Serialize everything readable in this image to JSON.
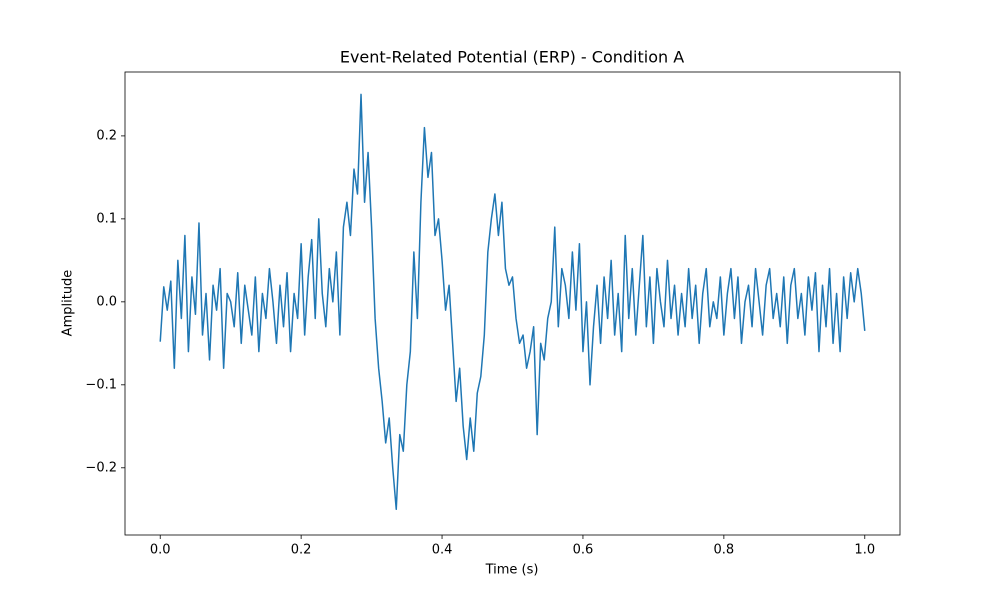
{
  "chart_data": {
    "type": "line",
    "title": "Event-Related Potential (ERP) - Condition A",
    "x_label": "Time (s)",
    "y_label": "Amplitude",
    "x": [
      0,
      0.005,
      0.01,
      0.015,
      0.02,
      0.025,
      0.03,
      0.035,
      0.04,
      0.045,
      0.05,
      0.055,
      0.06,
      0.065,
      0.07,
      0.075,
      0.08,
      0.085,
      0.09,
      0.095,
      0.1,
      0.105,
      0.11,
      0.115,
      0.12,
      0.125,
      0.13,
      0.135,
      0.14,
      0.145,
      0.15,
      0.155,
      0.16,
      0.165,
      0.17,
      0.175,
      0.18,
      0.185,
      0.19,
      0.195,
      0.2,
      0.205,
      0.21,
      0.215,
      0.22,
      0.225,
      0.23,
      0.235,
      0.24,
      0.245,
      0.25,
      0.255,
      0.26,
      0.265,
      0.27,
      0.275,
      0.28,
      0.285,
      0.29,
      0.295,
      0.3,
      0.305,
      0.31,
      0.315,
      0.32,
      0.325,
      0.33,
      0.335,
      0.34,
      0.345,
      0.35,
      0.355,
      0.36,
      0.365,
      0.37,
      0.375,
      0.38,
      0.385,
      0.39,
      0.395,
      0.4,
      0.405,
      0.41,
      0.415,
      0.42,
      0.425,
      0.43,
      0.435,
      0.44,
      0.445,
      0.45,
      0.455,
      0.46,
      0.465,
      0.47,
      0.475,
      0.48,
      0.485,
      0.49,
      0.495,
      0.5,
      0.505,
      0.51,
      0.515,
      0.52,
      0.525,
      0.53,
      0.535,
      0.54,
      0.545,
      0.55,
      0.555,
      0.56,
      0.565,
      0.57,
      0.575,
      0.58,
      0.585,
      0.59,
      0.595,
      0.6,
      0.605,
      0.61,
      0.615,
      0.62,
      0.625,
      0.63,
      0.635,
      0.64,
      0.645,
      0.65,
      0.655,
      0.66,
      0.665,
      0.67,
      0.675,
      0.68,
      0.685,
      0.69,
      0.695,
      0.7,
      0.705,
      0.71,
      0.715,
      0.72,
      0.725,
      0.73,
      0.735,
      0.74,
      0.745,
      0.75,
      0.755,
      0.76,
      0.765,
      0.77,
      0.775,
      0.78,
      0.785,
      0.79,
      0.795,
      0.8,
      0.805,
      0.81,
      0.815,
      0.82,
      0.825,
      0.83,
      0.835,
      0.84,
      0.845,
      0.85,
      0.855,
      0.86,
      0.865,
      0.87,
      0.875,
      0.88,
      0.885,
      0.89,
      0.895,
      0.9,
      0.905,
      0.91,
      0.915,
      0.92,
      0.925,
      0.93,
      0.935,
      0.94,
      0.945,
      0.95,
      0.955,
      0.96,
      0.965,
      0.97,
      0.975,
      0.98,
      0.985,
      0.99,
      0.995,
      1.0
    ],
    "values": [
      -0.048,
      0.018,
      -0.01,
      0.025,
      -0.08,
      0.05,
      -0.02,
      0.08,
      -0.06,
      0.03,
      -0.015,
      0.095,
      -0.04,
      0.01,
      -0.07,
      0.02,
      -0.01,
      0.04,
      -0.08,
      0.01,
      0.0,
      -0.03,
      0.035,
      -0.05,
      0.02,
      -0.01,
      -0.04,
      0.03,
      -0.06,
      0.01,
      -0.02,
      0.04,
      0.0,
      -0.05,
      0.02,
      -0.03,
      0.035,
      -0.06,
      0.01,
      -0.02,
      0.07,
      -0.04,
      0.03,
      0.075,
      -0.02,
      0.1,
      0.01,
      -0.03,
      0.04,
      0.0,
      0.06,
      -0.04,
      0.09,
      0.12,
      0.08,
      0.16,
      0.13,
      0.25,
      0.12,
      0.18,
      0.09,
      -0.02,
      -0.08,
      -0.12,
      -0.17,
      -0.14,
      -0.2,
      -0.25,
      -0.16,
      -0.18,
      -0.1,
      -0.06,
      0.06,
      -0.02,
      0.12,
      0.21,
      0.15,
      0.18,
      0.08,
      0.1,
      0.05,
      -0.01,
      0.02,
      -0.05,
      -0.12,
      -0.08,
      -0.15,
      -0.19,
      -0.14,
      -0.18,
      -0.11,
      -0.09,
      -0.04,
      0.06,
      0.1,
      0.13,
      0.08,
      0.12,
      0.04,
      0.02,
      0.03,
      -0.02,
      -0.05,
      -0.04,
      -0.08,
      -0.06,
      -0.03,
      -0.16,
      -0.05,
      -0.07,
      -0.02,
      0.0,
      0.09,
      -0.03,
      0.04,
      0.02,
      -0.02,
      0.06,
      -0.01,
      0.07,
      -0.06,
      0.0,
      -0.1,
      -0.03,
      0.02,
      -0.05,
      0.03,
      -0.02,
      0.05,
      -0.04,
      0.01,
      -0.06,
      0.08,
      -0.02,
      0.04,
      -0.04,
      0.02,
      0.08,
      -0.03,
      0.03,
      -0.05,
      0.04,
      0.0,
      -0.03,
      0.05,
      -0.02,
      0.02,
      -0.04,
      0.01,
      -0.03,
      0.04,
      -0.02,
      0.02,
      -0.05,
      0.01,
      0.04,
      -0.03,
      0.0,
      -0.02,
      0.03,
      -0.04,
      0.01,
      0.04,
      -0.02,
      0.03,
      -0.05,
      0.0,
      0.02,
      -0.03,
      0.04,
      0.0,
      -0.04,
      0.02,
      0.04,
      -0.02,
      0.01,
      -0.03,
      0.03,
      -0.05,
      0.02,
      0.04,
      -0.02,
      0.01,
      -0.04,
      0.03,
      -0.01,
      0.035,
      -0.06,
      0.02,
      -0.03,
      0.04,
      -0.05,
      0.01,
      -0.06,
      0.03,
      -0.02,
      0.035,
      0.0,
      0.04,
      0.01,
      -0.035
    ],
    "color": "#1f77b4",
    "xlim": [
      -0.05,
      1.05
    ],
    "ylim": [
      -0.281,
      0.277
    ],
    "xticks": [
      {
        "value": 0,
        "label": "0.0"
      },
      0.2,
      0.4,
      0.6,
      0.8,
      {
        "value": 1,
        "label": "1.0"
      }
    ],
    "yticks": [
      {
        "value": -0.2,
        "label": "−0.2"
      },
      {
        "value": -0.1,
        "label": "−0.1"
      },
      {
        "value": 0,
        "label": "0.0"
      },
      0.1,
      0.2
    ],
    "grid": false
  }
}
